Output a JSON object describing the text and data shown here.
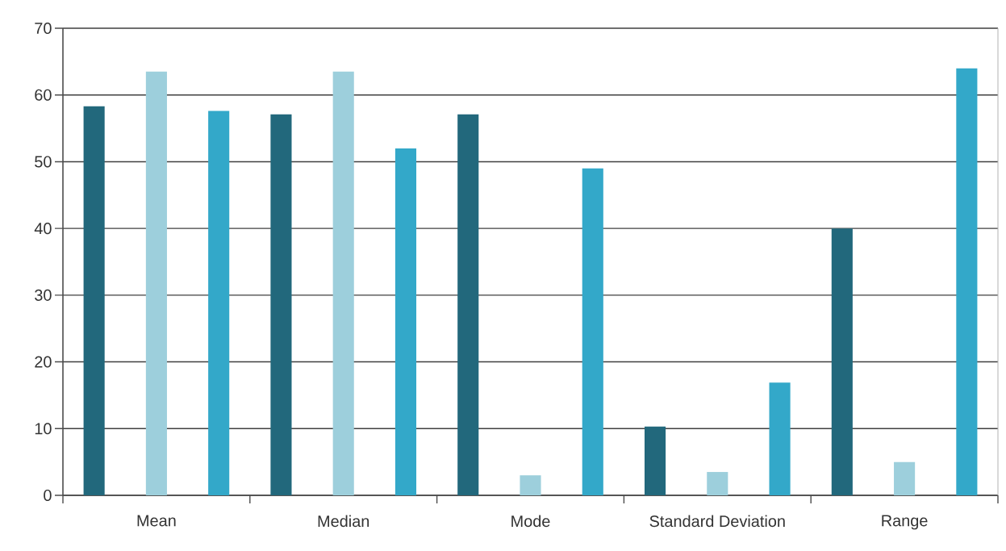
{
  "chart_data": {
    "type": "bar",
    "categories": [
      "Mean",
      "Median",
      "Mode",
      "Standard Deviation",
      "Range"
    ],
    "series": [
      {
        "color": "#22687c",
        "values": [
          58.3,
          57.1,
          57.1,
          10.3,
          40.0
        ]
      },
      {
        "color": "#9dcfdc",
        "values": [
          63.5,
          63.5,
          3.0,
          3.5,
          5.0
        ]
      },
      {
        "color": "#33a8c9",
        "values": [
          57.6,
          52.0,
          49.0,
          16.9,
          64.0
        ]
      }
    ],
    "ylim": [
      0,
      70
    ],
    "yticks": [
      0,
      10,
      20,
      30,
      40,
      50,
      60,
      70
    ],
    "grid": "y"
  }
}
